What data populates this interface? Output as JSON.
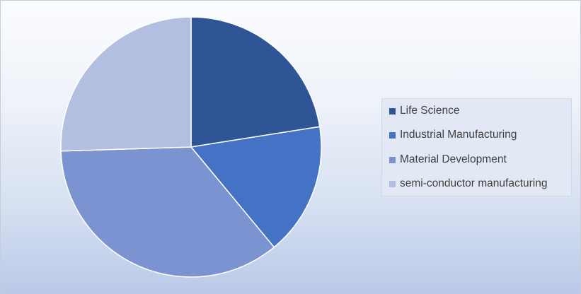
{
  "chart_data": {
    "type": "pie",
    "title": "",
    "start_angle_deg": 0,
    "direction": "clockwise",
    "legend_position": "right",
    "slices": [
      {
        "label": "Life Science",
        "value": 22.5,
        "color": "#2f5597"
      },
      {
        "label": "Industrial Manufacturing",
        "value": 16.5,
        "color": "#4472c4"
      },
      {
        "label": "Material Development",
        "value": 35.5,
        "color": "#7b93d1"
      },
      {
        "label": "semi-conductor manufacturing",
        "value": 25.5,
        "color": "#b3bfe0"
      }
    ]
  }
}
